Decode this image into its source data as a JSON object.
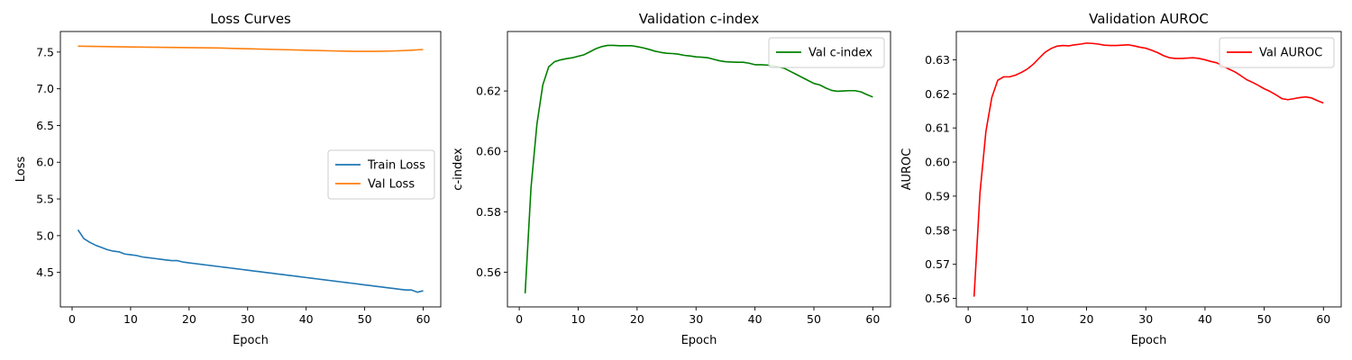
{
  "chart_data": [
    {
      "type": "line",
      "title": "Loss Curves",
      "xlabel": "Epoch",
      "ylabel": "Loss",
      "xlim": [
        -2,
        63
      ],
      "ylim": [
        4.03,
        7.78
      ],
      "xticks": [
        0,
        10,
        20,
        30,
        40,
        50,
        60
      ],
      "yticks": [
        4.5,
        5.0,
        5.5,
        6.0,
        6.5,
        7.0,
        7.5
      ],
      "ytick_decimals": 1,
      "legend": "center-right",
      "grid": false,
      "series": [
        {
          "name": "Train Loss",
          "color": "#1f77b4",
          "x": [
            1,
            2,
            3,
            4,
            5,
            6,
            7,
            8,
            9,
            10,
            11,
            12,
            13,
            14,
            15,
            16,
            17,
            18,
            19,
            20,
            21,
            22,
            23,
            24,
            25,
            26,
            27,
            28,
            29,
            30,
            31,
            32,
            33,
            34,
            35,
            36,
            37,
            38,
            39,
            40,
            41,
            42,
            43,
            44,
            45,
            46,
            47,
            48,
            49,
            50,
            51,
            52,
            53,
            54,
            55,
            56,
            57,
            58,
            59,
            60
          ],
          "y": [
            5.08,
            4.96,
            4.91,
            4.87,
            4.84,
            4.81,
            4.79,
            4.78,
            4.75,
            4.74,
            4.73,
            4.71,
            4.7,
            4.69,
            4.68,
            4.67,
            4.66,
            4.66,
            4.64,
            4.63,
            4.62,
            4.61,
            4.6,
            4.59,
            4.58,
            4.57,
            4.56,
            4.55,
            4.54,
            4.53,
            4.52,
            4.51,
            4.5,
            4.49,
            4.48,
            4.47,
            4.46,
            4.45,
            4.44,
            4.43,
            4.42,
            4.41,
            4.4,
            4.39,
            4.38,
            4.37,
            4.36,
            4.35,
            4.34,
            4.33,
            4.32,
            4.31,
            4.3,
            4.29,
            4.28,
            4.27,
            4.26,
            4.26,
            4.23,
            4.25
          ]
        },
        {
          "name": "Val Loss",
          "color": "#ff7f0e",
          "x": [
            1,
            5,
            10,
            15,
            20,
            25,
            30,
            35,
            40,
            45,
            48,
            50,
            52,
            55,
            58,
            60
          ],
          "y": [
            7.58,
            7.575,
            7.57,
            7.565,
            7.56,
            7.555,
            7.545,
            7.535,
            7.525,
            7.515,
            7.51,
            7.51,
            7.51,
            7.515,
            7.525,
            7.535
          ]
        }
      ]
    },
    {
      "type": "line",
      "title": "Validation c-index",
      "xlabel": "Epoch",
      "ylabel": "c-index",
      "xlim": [
        -2,
        63
      ],
      "ylim": [
        0.5485,
        0.6397
      ],
      "xticks": [
        0,
        10,
        20,
        30,
        40,
        50,
        60
      ],
      "yticks": [
        0.56,
        0.58,
        0.6,
        0.62
      ],
      "ytick_decimals": 2,
      "legend": "top-right",
      "grid": false,
      "series": [
        {
          "name": "Val c-index",
          "color": "#008000",
          "x": [
            1,
            2,
            3,
            4,
            5,
            6,
            7,
            8,
            9,
            10,
            11,
            12,
            13,
            14,
            15,
            16,
            17,
            18,
            19,
            20,
            21,
            22,
            23,
            24,
            25,
            26,
            27,
            28,
            29,
            30,
            31,
            32,
            33,
            34,
            35,
            36,
            37,
            38,
            39,
            40,
            41,
            42,
            43,
            44,
            45,
            46,
            47,
            48,
            49,
            50,
            51,
            52,
            53,
            54,
            55,
            56,
            57,
            58,
            59,
            60
          ],
          "y": [
            0.553,
            0.588,
            0.609,
            0.622,
            0.628,
            0.6297,
            0.6303,
            0.6307,
            0.631,
            0.6315,
            0.632,
            0.633,
            0.634,
            0.6347,
            0.6351,
            0.6351,
            0.635,
            0.635,
            0.635,
            0.6347,
            0.6343,
            0.6338,
            0.6332,
            0.6328,
            0.6325,
            0.6324,
            0.6322,
            0.6318,
            0.6316,
            0.6313,
            0.6312,
            0.631,
            0.6305,
            0.63,
            0.6297,
            0.6296,
            0.6295,
            0.6295,
            0.6292,
            0.6287,
            0.6287,
            0.6286,
            0.6283,
            0.628,
            0.6275,
            0.6265,
            0.6255,
            0.6245,
            0.6235,
            0.6225,
            0.622,
            0.621,
            0.6202,
            0.6199,
            0.62,
            0.6201,
            0.6201,
            0.6197,
            0.6188,
            0.618
          ]
        }
      ]
    },
    {
      "type": "line",
      "title": "Validation AUROC",
      "xlabel": "Epoch",
      "ylabel": "AUROC",
      "xlim": [
        -2,
        63
      ],
      "ylim": [
        0.5575,
        0.6383
      ],
      "xticks": [
        0,
        10,
        20,
        30,
        40,
        50,
        60
      ],
      "yticks": [
        0.56,
        0.57,
        0.58,
        0.59,
        0.6,
        0.61,
        0.62,
        0.63
      ],
      "ytick_decimals": 2,
      "legend": "top-right",
      "grid": false,
      "series": [
        {
          "name": "Val AUROC",
          "color": "#ff0000",
          "x": [
            1,
            2,
            3,
            4,
            5,
            6,
            7,
            8,
            9,
            10,
            11,
            12,
            13,
            14,
            15,
            16,
            17,
            18,
            19,
            20,
            21,
            22,
            23,
            24,
            25,
            26,
            27,
            28,
            29,
            30,
            31,
            32,
            33,
            34,
            35,
            36,
            37,
            38,
            39,
            40,
            41,
            42,
            43,
            44,
            45,
            46,
            47,
            48,
            49,
            50,
            51,
            52,
            53,
            54,
            55,
            56,
            57,
            58,
            59,
            60
          ],
          "y": [
            0.5605,
            0.591,
            0.609,
            0.619,
            0.624,
            0.625,
            0.625,
            0.6255,
            0.6263,
            0.6273,
            0.6287,
            0.6305,
            0.6322,
            0.6333,
            0.634,
            0.6342,
            0.6341,
            0.6344,
            0.6346,
            0.6349,
            0.6348,
            0.6346,
            0.6343,
            0.6342,
            0.6342,
            0.6343,
            0.6344,
            0.6341,
            0.6337,
            0.6334,
            0.6328,
            0.6321,
            0.6312,
            0.6306,
            0.6304,
            0.6304,
            0.6305,
            0.6306,
            0.6304,
            0.63,
            0.6295,
            0.6291,
            0.6282,
            0.6273,
            0.6265,
            0.6254,
            0.6242,
            0.6234,
            0.6225,
            0.6215,
            0.6207,
            0.6197,
            0.6186,
            0.6183,
            0.6186,
            0.6189,
            0.6191,
            0.6188,
            0.618,
            0.6173
          ]
        }
      ]
    }
  ]
}
